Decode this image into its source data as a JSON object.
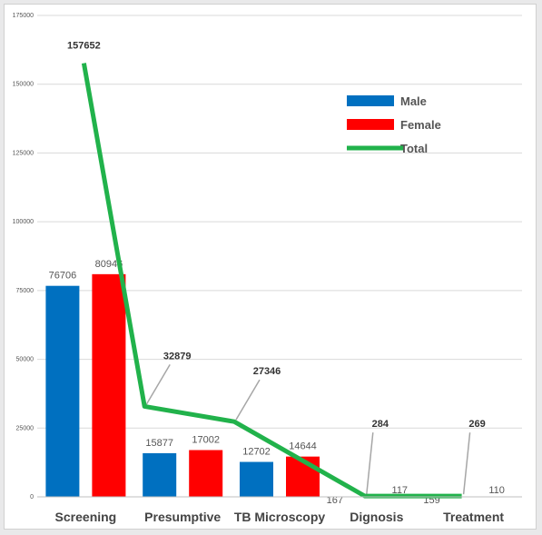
{
  "chart_data": {
    "type": "bar",
    "categories": [
      "Screening",
      "Presumptive",
      "TB Microscopy",
      "Dignosis",
      "Treatment"
    ],
    "series": [
      {
        "name": "Male",
        "type": "bar",
        "color": "#0070c0",
        "values": [
          76706,
          15877,
          12702,
          167,
          159
        ]
      },
      {
        "name": "Female",
        "type": "bar",
        "color": "#ff0000",
        "values": [
          80946,
          17002,
          14644,
          117,
          110
        ]
      },
      {
        "name": "Total",
        "type": "line",
        "color": "#21b24b",
        "values": [
          157652,
          32879,
          27346,
          284,
          269
        ]
      }
    ],
    "ylim": [
      0,
      175000
    ],
    "yticks": [
      0,
      25000,
      50000,
      75000,
      100000,
      125000,
      150000,
      175000
    ],
    "ytick_labels": [
      "0",
      "25000",
      "50000",
      "75000",
      "100000",
      "125000",
      "150000",
      "175000"
    ],
    "grid": true,
    "legend": "upper-right"
  }
}
